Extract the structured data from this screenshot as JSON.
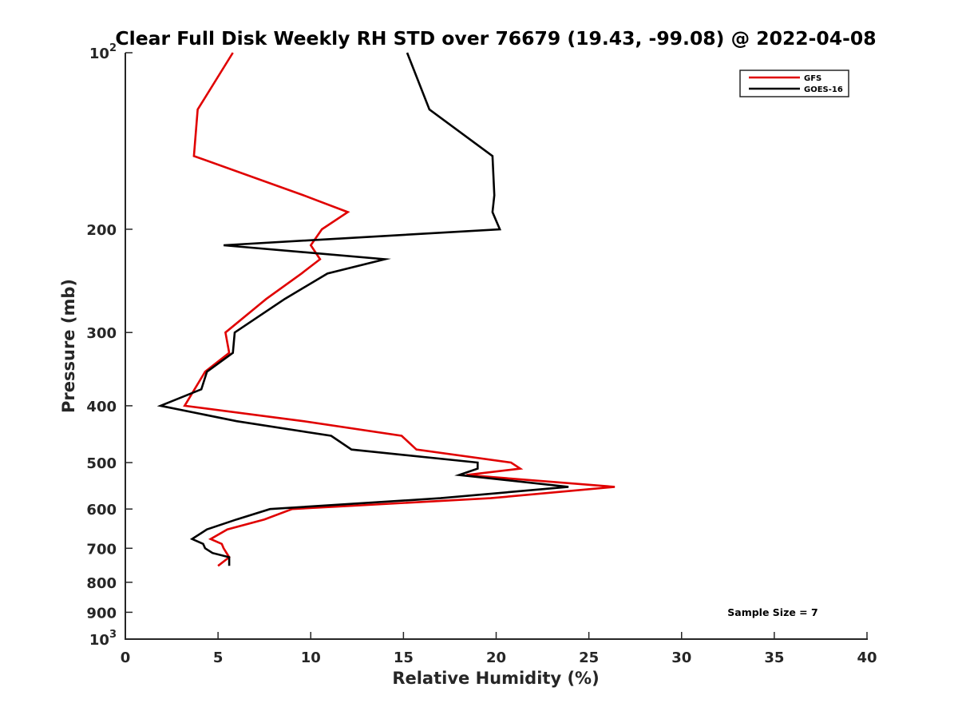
{
  "chart_data": {
    "type": "line",
    "title": "Clear Full Disk Weekly RH STD over 76679 (19.43, -99.08) @ 2022-04-08",
    "xlabel": "Relative Humidity (%)",
    "ylabel": "Pressure (mb)",
    "xlim": [
      0,
      40
    ],
    "ylim": [
      100,
      1000
    ],
    "y_scale": "log",
    "y_reversed": true,
    "x_ticks": [
      0,
      5,
      10,
      15,
      20,
      25,
      30,
      35,
      40
    ],
    "y_ticks": [
      {
        "value": 100,
        "label": "10",
        "sup": "2"
      },
      {
        "value": 200,
        "label": "200",
        "sup": ""
      },
      {
        "value": 300,
        "label": "300",
        "sup": ""
      },
      {
        "value": 400,
        "label": "400",
        "sup": ""
      },
      {
        "value": 500,
        "label": "500",
        "sup": ""
      },
      {
        "value": 600,
        "label": "600",
        "sup": ""
      },
      {
        "value": 700,
        "label": "700",
        "sup": ""
      },
      {
        "value": 800,
        "label": "800",
        "sup": ""
      },
      {
        "value": 900,
        "label": "900",
        "sup": ""
      },
      {
        "value": 1000,
        "label": "10",
        "sup": "3"
      }
    ],
    "grid": false,
    "legend_position": "top-right",
    "annotation": "Sample Size = 7",
    "series": [
      {
        "name": "GFS",
        "color": "#e00000",
        "points": [
          [
            5.8,
            100
          ],
          [
            3.9,
            125
          ],
          [
            3.7,
            150
          ],
          [
            9.6,
            175
          ],
          [
            12.0,
            187
          ],
          [
            10.6,
            200
          ],
          [
            10.0,
            213
          ],
          [
            10.5,
            225
          ],
          [
            9.5,
            238
          ],
          [
            7.6,
            263
          ],
          [
            5.4,
            300
          ],
          [
            5.6,
            325
          ],
          [
            4.3,
            350
          ],
          [
            3.2,
            400
          ],
          [
            9.6,
            425
          ],
          [
            14.9,
            450
          ],
          [
            15.7,
            475
          ],
          [
            20.8,
            500
          ],
          [
            21.3,
            512
          ],
          [
            18.4,
            525
          ],
          [
            26.4,
            550
          ],
          [
            19.7,
            575
          ],
          [
            9.0,
            600
          ],
          [
            7.5,
            625
          ],
          [
            5.5,
            650
          ],
          [
            4.6,
            675
          ],
          [
            5.2,
            688
          ],
          [
            5.3,
            700
          ],
          [
            5.6,
            725
          ],
          [
            5.0,
            750
          ]
        ]
      },
      {
        "name": "GOES-16",
        "color": "#000000",
        "points": [
          [
            15.2,
            100
          ],
          [
            16.4,
            125
          ],
          [
            19.8,
            150
          ],
          [
            19.9,
            175
          ],
          [
            19.8,
            187
          ],
          [
            20.2,
            200
          ],
          [
            5.3,
            213
          ],
          [
            14.0,
            225
          ],
          [
            10.9,
            238
          ],
          [
            8.6,
            263
          ],
          [
            5.9,
            300
          ],
          [
            5.8,
            325
          ],
          [
            4.4,
            350
          ],
          [
            4.1,
            375
          ],
          [
            1.9,
            400
          ],
          [
            6.0,
            425
          ],
          [
            11.1,
            450
          ],
          [
            12.2,
            475
          ],
          [
            19.0,
            500
          ],
          [
            19.0,
            512
          ],
          [
            18.0,
            525
          ],
          [
            23.9,
            550
          ],
          [
            17.0,
            575
          ],
          [
            7.8,
            600
          ],
          [
            6.0,
            625
          ],
          [
            4.4,
            650
          ],
          [
            3.6,
            675
          ],
          [
            4.2,
            688
          ],
          [
            4.3,
            700
          ],
          [
            4.7,
            713
          ],
          [
            5.6,
            725
          ],
          [
            5.6,
            750
          ]
        ]
      }
    ]
  }
}
